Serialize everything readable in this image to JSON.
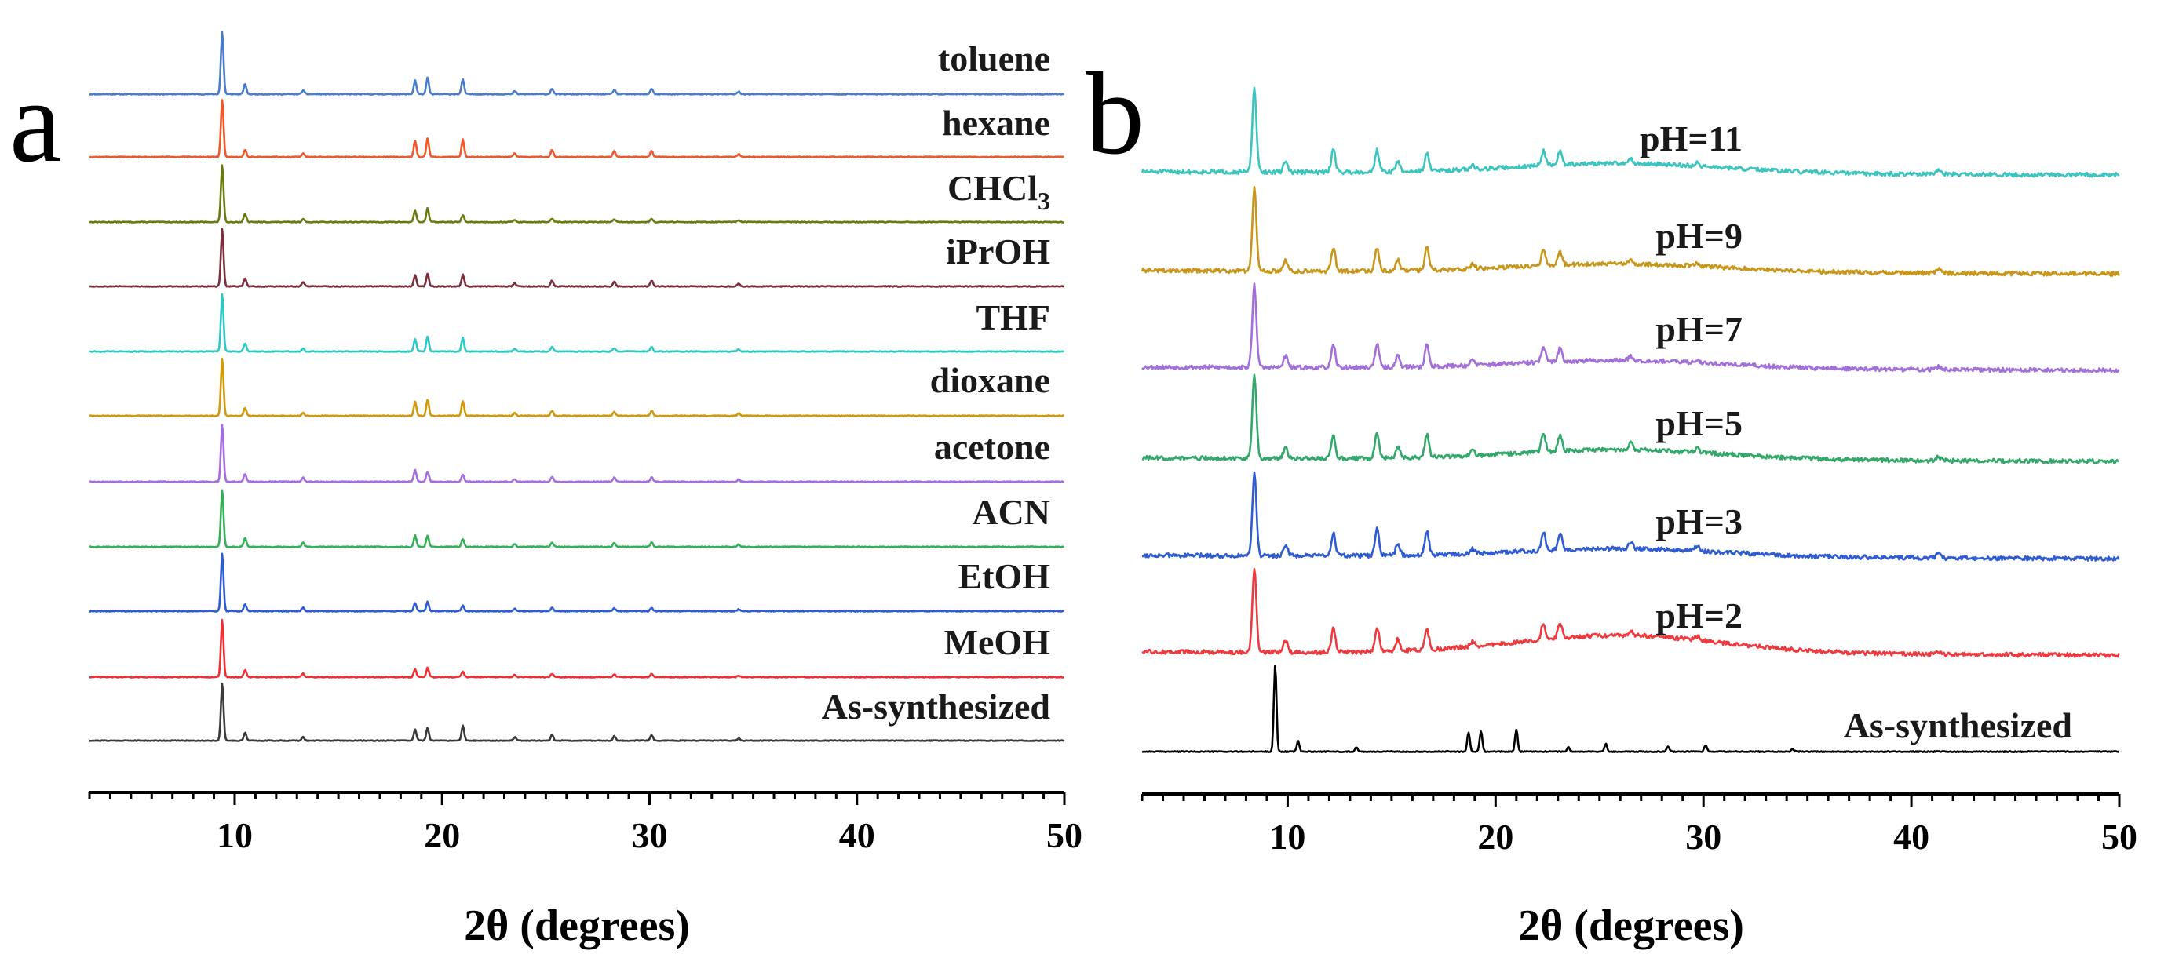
{
  "chart_data": [
    {
      "type": "line",
      "panel_label": "a",
      "title": "",
      "xlabel": "2θ (degrees)",
      "ylabel": "",
      "xlim": [
        3,
        50
      ],
      "x_ticks": [
        10,
        20,
        30,
        40,
        50
      ],
      "x_tick_labels": [
        "10",
        "20",
        "30",
        "40",
        "50"
      ],
      "grid": false,
      "stacked_offset_plot": true,
      "peaks_2theta": [
        9.4,
        10.5,
        13.3,
        18.7,
        19.3,
        21.0,
        23.5,
        25.3,
        28.3,
        30.1,
        34.3
      ],
      "series": [
        {
          "name": "toluene",
          "color": "#4a7cc9",
          "scale": 1.0,
          "peaks": [
            1.0,
            0.16,
            0.06,
            0.22,
            0.26,
            0.24,
            0.05,
            0.09,
            0.07,
            0.09,
            0.04
          ]
        },
        {
          "name": "hexane",
          "color": "#f2572b",
          "scale": 0.92,
          "peaks": [
            1.0,
            0.12,
            0.06,
            0.28,
            0.32,
            0.3,
            0.06,
            0.12,
            0.1,
            0.11,
            0.05
          ]
        },
        {
          "name": "CHCl3",
          "color": "#6b7a10",
          "scale": 0.92,
          "peaks": [
            1.0,
            0.14,
            0.05,
            0.2,
            0.24,
            0.12,
            0.04,
            0.06,
            0.05,
            0.06,
            0.03
          ]
        },
        {
          "name": "iPrOH",
          "color": "#7a2f3c",
          "scale": 0.92,
          "peaks": [
            1.0,
            0.14,
            0.07,
            0.2,
            0.22,
            0.2,
            0.06,
            0.1,
            0.08,
            0.1,
            0.05
          ]
        },
        {
          "name": "THF",
          "color": "#2ec8c2",
          "scale": 0.92,
          "peaks": [
            1.0,
            0.14,
            0.05,
            0.22,
            0.26,
            0.24,
            0.05,
            0.08,
            0.06,
            0.08,
            0.04
          ]
        },
        {
          "name": "dioxane",
          "color": "#d19a0c",
          "scale": 0.92,
          "peaks": [
            1.0,
            0.14,
            0.05,
            0.24,
            0.28,
            0.26,
            0.05,
            0.09,
            0.07,
            0.09,
            0.04
          ]
        },
        {
          "name": "acetone",
          "color": "#a56ee0",
          "scale": 0.92,
          "peaks": [
            1.0,
            0.14,
            0.07,
            0.2,
            0.18,
            0.12,
            0.05,
            0.08,
            0.07,
            0.08,
            0.04
          ]
        },
        {
          "name": "ACN",
          "color": "#33b058",
          "scale": 0.92,
          "peaks": [
            1.0,
            0.15,
            0.07,
            0.2,
            0.2,
            0.14,
            0.05,
            0.08,
            0.07,
            0.08,
            0.04
          ]
        },
        {
          "name": "EtOH",
          "color": "#2f5bd3",
          "scale": 0.92,
          "peaks": [
            1.0,
            0.12,
            0.06,
            0.14,
            0.16,
            0.1,
            0.04,
            0.06,
            0.05,
            0.06,
            0.03
          ]
        },
        {
          "name": "MeOH",
          "color": "#ef2f36",
          "scale": 0.92,
          "peaks": [
            1.0,
            0.12,
            0.06,
            0.14,
            0.16,
            0.1,
            0.04,
            0.06,
            0.05,
            0.06,
            0.03
          ]
        },
        {
          "name": "As-synthesized",
          "color": "#3a3a3a",
          "scale": 0.92,
          "peaks": [
            1.0,
            0.14,
            0.06,
            0.2,
            0.22,
            0.26,
            0.06,
            0.1,
            0.08,
            0.1,
            0.04
          ]
        }
      ],
      "label_parts": {
        "CHCl3": {
          "base": "CHCl",
          "sub": "3"
        }
      }
    },
    {
      "type": "line",
      "panel_label": "b",
      "title": "",
      "xlabel": "2θ (degrees)",
      "ylabel": "",
      "xlim": [
        3,
        50
      ],
      "x_ticks": [
        10,
        20,
        30,
        40,
        50
      ],
      "x_tick_labels": [
        "10",
        "20",
        "30",
        "40",
        "50"
      ],
      "grid": false,
      "stacked_offset_plot": true,
      "peaks_2theta": [
        8.4,
        9.9,
        12.2,
        14.3,
        15.3,
        16.7,
        18.9,
        22.3,
        23.1,
        26.5,
        29.7,
        41.3
      ],
      "series": [
        {
          "name": "pH=11",
          "color": "#3cc4be",
          "hump": 0.12,
          "peaks": [
            1.0,
            0.14,
            0.28,
            0.26,
            0.12,
            0.22,
            0.05,
            0.18,
            0.16,
            0.06,
            0.04,
            0.04
          ]
        },
        {
          "name": "pH=9",
          "color": "#c7961a",
          "hump": 0.1,
          "peaks": [
            1.0,
            0.14,
            0.28,
            0.28,
            0.14,
            0.28,
            0.06,
            0.18,
            0.16,
            0.06,
            0.04,
            0.05
          ]
        },
        {
          "name": "pH=7",
          "color": "#a270d8",
          "hump": 0.1,
          "peaks": [
            1.0,
            0.14,
            0.26,
            0.28,
            0.14,
            0.26,
            0.06,
            0.18,
            0.16,
            0.06,
            0.04,
            0.04
          ]
        },
        {
          "name": "pH=5",
          "color": "#33a86a",
          "hump": 0.12,
          "peaks": [
            1.0,
            0.14,
            0.28,
            0.3,
            0.14,
            0.28,
            0.06,
            0.22,
            0.2,
            0.08,
            0.05,
            0.05
          ]
        },
        {
          "name": "pH=3",
          "color": "#2f5bd3",
          "hump": 0.1,
          "peaks": [
            1.0,
            0.14,
            0.28,
            0.32,
            0.14,
            0.28,
            0.06,
            0.22,
            0.2,
            0.08,
            0.06,
            0.05
          ]
        },
        {
          "name": "pH=2",
          "color": "#ec3a3f",
          "hump": 0.22,
          "peaks": [
            1.0,
            0.14,
            0.28,
            0.3,
            0.14,
            0.24,
            0.06,
            0.2,
            0.18,
            0.06,
            0.04,
            0.04
          ]
        }
      ],
      "reference_series": {
        "name": "As-synthesized",
        "color": "#000000",
        "peaks_2theta": [
          9.4,
          10.5,
          13.3,
          18.7,
          19.3,
          21.0,
          23.5,
          25.3,
          28.3,
          30.1,
          34.3
        ],
        "peaks": [
          1.0,
          0.12,
          0.05,
          0.22,
          0.24,
          0.26,
          0.05,
          0.09,
          0.06,
          0.07,
          0.03
        ]
      }
    }
  ]
}
